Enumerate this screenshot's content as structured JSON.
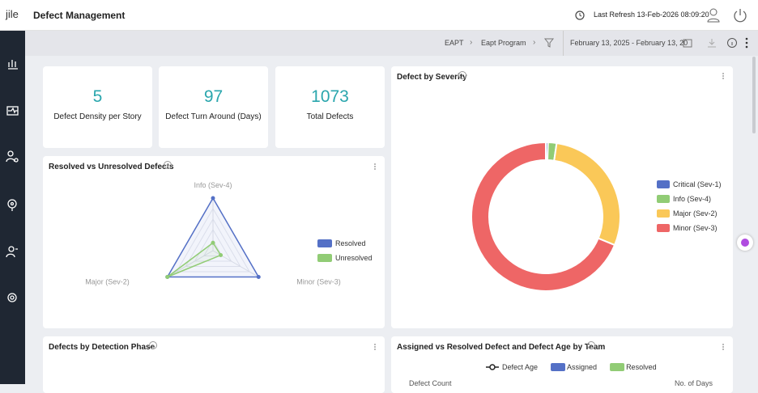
{
  "header": {
    "logo": "jile",
    "title": "Defect Management",
    "last_refresh": "Last Refresh 13-Feb-2026 08:09:20"
  },
  "breadcrumb": {
    "items": [
      "EAPT",
      "Eapt Program"
    ],
    "date_range": "February 13, 2025 - February 13, 20"
  },
  "kpis": [
    {
      "value": 5,
      "label": "Defect Density per Story"
    },
    {
      "value": 97,
      "label": "Defect Turn Around (Days)"
    },
    {
      "value": 1073,
      "label": "Total Defects"
    }
  ],
  "chart_data": [
    {
      "type": "donut",
      "title": "Defect by Severity",
      "categories": [
        "Critical (Sev-1)",
        "Info (Sev-4)",
        "Major (Sev-2)",
        "Minor (Sev-3)"
      ],
      "values": [
        5,
        20,
        310,
        738
      ],
      "colors": [
        "#5470c6",
        "#91cc75",
        "#fac858",
        "#ee6666"
      ],
      "legend": "right"
    },
    {
      "type": "radar",
      "title": "Resolved vs Unresolved Defects",
      "categories": [
        "Info (Sev-4)",
        "Minor (Sev-3)",
        "Major (Sev-2)"
      ],
      "rlim": [
        0,
        100
      ],
      "rticks": [
        20,
        40,
        60,
        80,
        100
      ],
      "legend": "right",
      "series": [
        {
          "name": "Resolved",
          "color": "#5470c6",
          "values": [
            100,
            100,
            100
          ]
        },
        {
          "name": "Unresolved",
          "color": "#91cc75",
          "values": [
            15,
            17,
            100
          ]
        }
      ]
    },
    {
      "type": "bar",
      "title": "Defects by Detection Phase"
    },
    {
      "type": "bar",
      "title": "Assigned vs Resolved Defect and Defect Age by Team",
      "y_label": "Defect Count",
      "y2_label": "No. of Days",
      "series": [
        {
          "name": "Defect Age",
          "color": "#222222",
          "axis": "y2"
        },
        {
          "name": "Assigned",
          "color": "#5470c6"
        },
        {
          "name": "Resolved",
          "color": "#91cc75"
        }
      ]
    }
  ]
}
